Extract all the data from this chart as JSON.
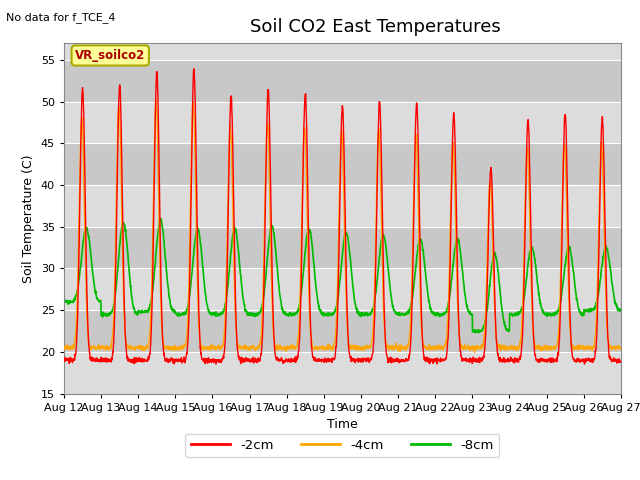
{
  "title": "Soil CO2 East Temperatures",
  "subtitle": "No data for f_TCE_4",
  "ylabel": "Soil Temperature (C)",
  "xlabel": "Time",
  "annotation": "VR_soilco2",
  "ylim": [
    15,
    57
  ],
  "yticks": [
    15,
    20,
    25,
    30,
    35,
    40,
    45,
    50,
    55
  ],
  "x_labels": [
    "Aug 12",
    "Aug 13",
    "Aug 14",
    "Aug 15",
    "Aug 16",
    "Aug 17",
    "Aug 18",
    "Aug 19",
    "Aug 20",
    "Aug 21",
    "Aug 22",
    "Aug 23",
    "Aug 24",
    "Aug 25",
    "Aug 26",
    "Aug 27"
  ],
  "colors": {
    "2cm": "#ff0000",
    "4cm": "#ffa500",
    "8cm": "#00bb00"
  },
  "legend_labels": [
    "-2cm",
    "-4cm",
    "-8cm"
  ],
  "plot_bg_light": "#dcdcdc",
  "plot_bg_dark": "#c8c8c8",
  "grid_color": "#ffffff",
  "fig_bg": "#ffffff",
  "title_fontsize": 13,
  "label_fontsize": 9,
  "tick_fontsize": 8
}
